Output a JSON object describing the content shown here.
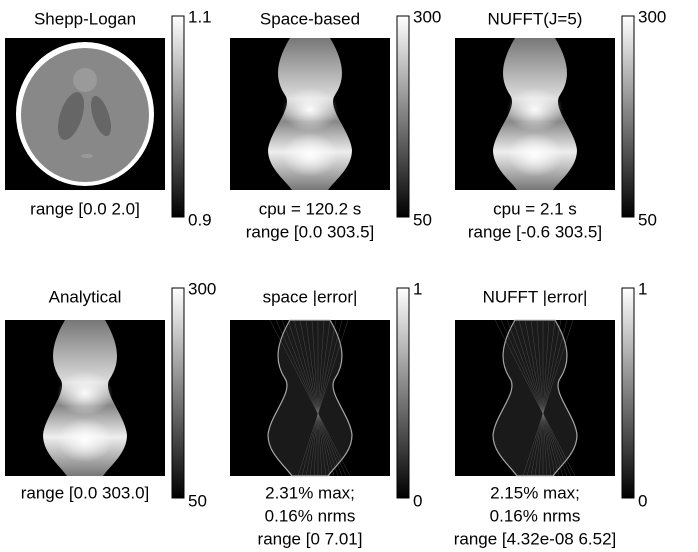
{
  "panels": [
    {
      "title": "Shepp-Logan",
      "colorbar": {
        "max": "1.1",
        "min": "0.9"
      },
      "caption": [
        "range [0.0 2.0]"
      ]
    },
    {
      "title": "Space-based",
      "colorbar": {
        "max": "300",
        "min": "50"
      },
      "caption": [
        "cpu = 120.2 s",
        "range [0.0 303.5]"
      ]
    },
    {
      "title": "NUFFT(J=5)",
      "colorbar": {
        "max": "300",
        "min": "50"
      },
      "caption": [
        "cpu = 2.1 s",
        "range [-0.6 303.5]"
      ]
    },
    {
      "title": "Analytical",
      "colorbar": {
        "max": "300",
        "min": "50"
      },
      "caption": [
        "range [0.0 303.0]"
      ]
    },
    {
      "title": "space |error|",
      "colorbar": {
        "max": "1",
        "min": "0"
      },
      "caption": [
        "2.31% max;",
        "0.16% nrms",
        "range [0 7.01]"
      ]
    },
    {
      "title": "NUFFT |error|",
      "colorbar": {
        "max": "1",
        "min": "0"
      },
      "caption": [
        "2.15% max;",
        "0.16% nrms",
        "range [4.32e-08 6.52]"
      ]
    }
  ]
}
